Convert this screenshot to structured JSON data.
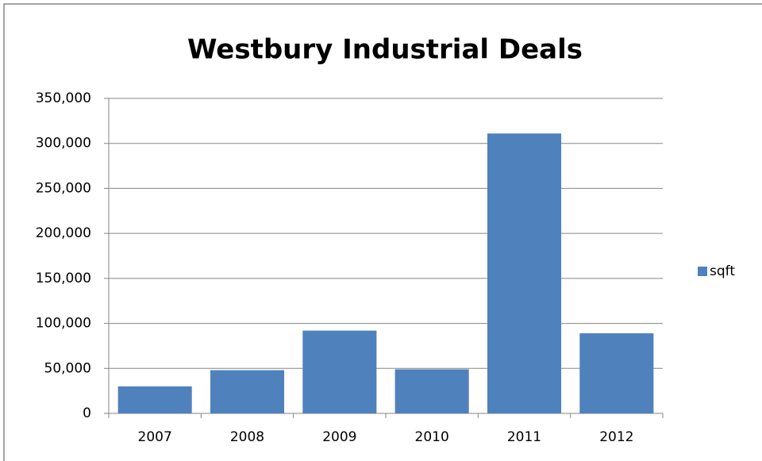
{
  "chart_data": {
    "type": "bar",
    "title": "Westbury Industrial Deals",
    "categories": [
      "2007",
      "2008",
      "2009",
      "2010",
      "2011",
      "2012"
    ],
    "series": [
      {
        "name": "sqft",
        "color": "#4f81bd",
        "values": [
          30000,
          48000,
          92000,
          49000,
          311000,
          89000
        ]
      }
    ],
    "ylim": [
      0,
      350000
    ],
    "yticks": [
      0,
      {
        "value": 50000,
        "label": "50,000"
      },
      {
        "value": 100000,
        "label": "100,000"
      },
      {
        "value": 150000,
        "label": "150,000"
      },
      {
        "value": 200000,
        "label": "200,000"
      },
      {
        "value": 250000,
        "label": "250,000"
      },
      {
        "value": 300000,
        "label": "300,000"
      },
      {
        "value": 350000,
        "label": "350,000"
      }
    ],
    "grid": true,
    "legend": "right"
  }
}
